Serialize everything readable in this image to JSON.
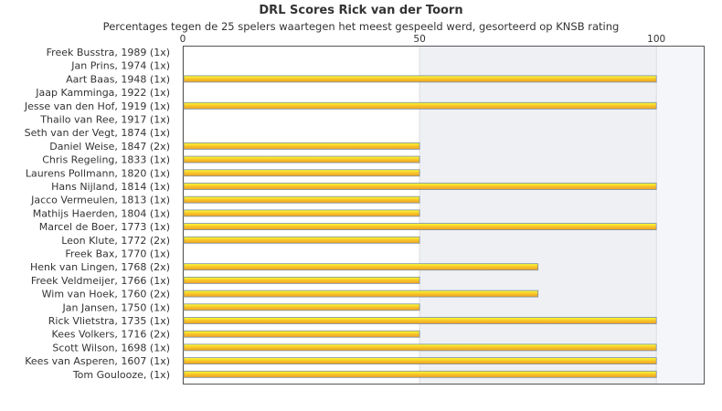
{
  "chart_data": {
    "type": "bar",
    "orientation": "horizontal",
    "title": "DRL Scores Rick van der Toorn",
    "subtitle": "Percentages tegen de 25 spelers waartegen het meest gespeeld werd, gesorteerd op KNSB rating",
    "xlim": [
      0,
      110
    ],
    "xticks": [
      0,
      50,
      100
    ],
    "categories": [
      "Freek Busstra, 1989 (1x)",
      "Jan Prins, 1974 (1x)",
      "Aart Baas, 1948 (1x)",
      "Jaap Kamminga, 1922 (1x)",
      "Jesse van den Hof, 1919 (1x)",
      "Thailo van Ree, 1917 (1x)",
      "Seth van der Vegt, 1874 (1x)",
      "Daniel Weise, 1847 (2x)",
      "Chris Regeling, 1833 (1x)",
      "Laurens Pollmann, 1820 (1x)",
      "Hans Nijland, 1814 (1x)",
      "Jacco Vermeulen, 1813 (1x)",
      "Mathijs Haerden, 1804 (1x)",
      "Marcel de Boer, 1773 (1x)",
      "Leon Klute, 1772 (2x)",
      "Freek Bax, 1770 (1x)",
      "Henk van Lingen, 1768 (2x)",
      "Freek Veldmeijer, 1766 (1x)",
      "Wim van Hoek, 1760 (2x)",
      "Jan Jansen, 1750 (1x)",
      "Rick Vlietstra, 1735 (1x)",
      "Kees Volkers, 1716 (2x)",
      "Scott Wilson, 1698 (1x)",
      "Kees van Asperen, 1607 (1x)",
      "Tom Goulooze,  (1x)"
    ],
    "values": [
      0,
      0,
      100,
      0,
      100,
      0,
      0,
      50,
      50,
      50,
      100,
      50,
      50,
      100,
      50,
      0,
      75,
      50,
      75,
      50,
      100,
      50,
      100,
      100,
      100
    ],
    "colors": {
      "bar_start": "#ffff33",
      "bar_end": "#f0a020",
      "bar_stroke": "#7a8fa0",
      "band": "#eef0f4"
    }
  }
}
